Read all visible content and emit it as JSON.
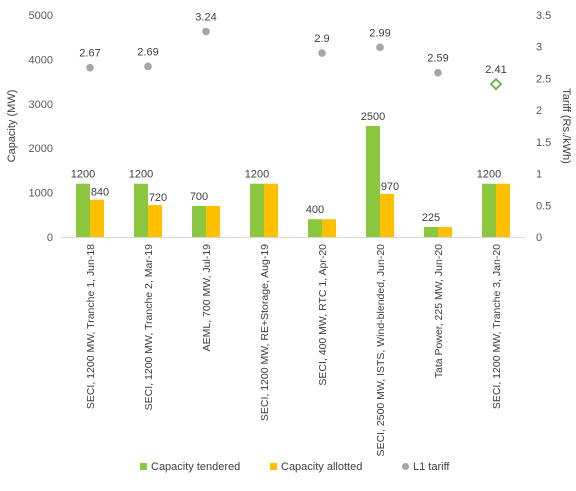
{
  "chart_data": {
    "type": "bar",
    "categories": [
      "SECI, 1200 MW, Tranche 1, Jun-18",
      "SECI, 1200 MW, Tranche 2, Mar-19",
      "AEML, 700 MW, Jul-19",
      "SECI, 1200 MW, RE+Storage, Aug-19",
      "SECI, 400 MW, RTC 1, Apr-20",
      "SECI, 2500 MW, ISTS, Wind-blended, Jun-20",
      "Tata Power, 225 MW, Jun-20",
      "SECI, 1200 MW, Tranche 3, Jan-20"
    ],
    "series": [
      {
        "name": "Capacity tendered",
        "axis": "left",
        "kind": "bar",
        "color": "#8dc63f",
        "values": [
          1200,
          1200,
          700,
          1200,
          400,
          2500,
          225,
          1200
        ],
        "labels": [
          "1200",
          "1200",
          "700",
          "1200",
          "400",
          "2500",
          "225",
          "1200"
        ]
      },
      {
        "name": "Capacity allotted",
        "axis": "left",
        "kind": "bar",
        "color": "#ffc000",
        "values": [
          840,
          720,
          700,
          1200,
          400,
          970,
          225,
          1200
        ],
        "labels": [
          "840",
          "720",
          "",
          "",
          "",
          "970",
          "",
          ""
        ]
      },
      {
        "name": "L1 tariff",
        "axis": "right",
        "kind": "scatter",
        "color": "#a6a6a6",
        "values": [
          2.67,
          2.69,
          3.24,
          null,
          2.9,
          2.99,
          2.59,
          2.41
        ],
        "labels": [
          "2.67",
          "2.69",
          "3.24",
          "",
          "2.9",
          "2.99",
          "2.59",
          "2.41"
        ],
        "highlight_index": 7,
        "highlight_color": "#70ad47"
      }
    ],
    "ylabel": "Capacity (MW)",
    "y2label": "Tariff (Rs./kWh)",
    "ylim": [
      0,
      5000
    ],
    "y2lim": [
      0,
      3.5
    ],
    "yticks": [
      "0",
      "1000",
      "2000",
      "3000",
      "4000",
      "5000"
    ],
    "y2ticks": [
      "0",
      "0.5",
      "1",
      "1.5",
      "2",
      "2.5",
      "3",
      "3.5"
    ],
    "grid": false,
    "legend_position": "bottom"
  }
}
